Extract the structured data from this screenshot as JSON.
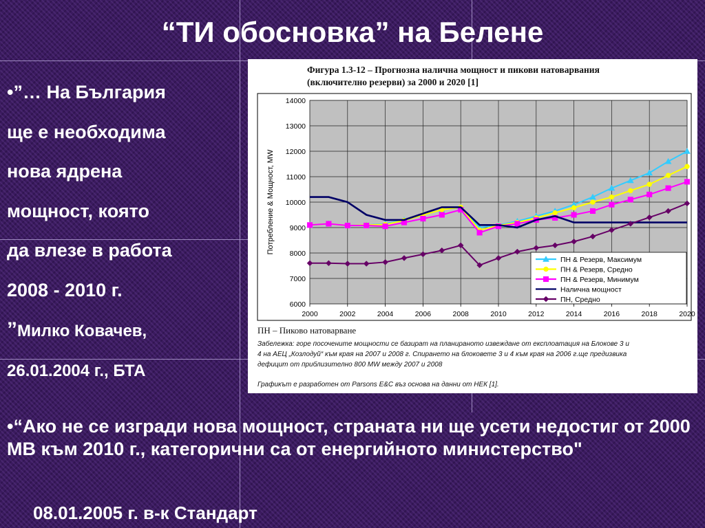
{
  "slide": {
    "title": "“ТИ обосновка” на Белене",
    "quote_lines": [
      "•”… На България",
      "ще е необходима",
      "нова ядрена",
      "мощност, която",
      "да влезе в работа",
      "2008 - 2010 г."
    ],
    "quote_source_mark": "”",
    "quote_source_name": "Милко Ковачев,",
    "quote_source_date": "26.01.2004 г., БТА",
    "bottom_quote": "•“Ако не се изгради нова мощност, страната ни ще усети недостиг от 2000 МВ към 2010 г., категорични са от енергийното министерство\"",
    "bottom_source": "08.01.2005 г. в-к Стандарт"
  },
  "figure": {
    "caption_line1": "Фигура 1.3-12 – Прогнозна налична мощност и пикови натоварвания",
    "caption_line2": "(включително резерви) за 2000 и 2020 [1]",
    "abbrev_note": "ПН – Пиково натоварване",
    "note_lines": [
      "Забележка: горе посочените мощности се базират на планираното извеждане от експлоатация на Блокове 3 и",
      "4 на АЕЦ „Козлодуй“ към края на 2007 и 2008 г.  Спирането на блоковете 3 и 4 към края на 2006 г.ще предизвика",
      "дефицит от приблизително 800 MW между 2007 и 2008"
    ],
    "source_line": "Графикът е разработен от Parsons E&C въз основа на данни от НЕК [1]."
  },
  "chart_data": {
    "type": "line",
    "title": "Фигура 1.3-12 – Прогнозна налична мощност и пикови натоварвания (включително резерви) за 2000 и 2020 [1]",
    "xlabel": "",
    "ylabel": "Потребление & Мощност, MW",
    "ylim": [
      6000,
      14000
    ],
    "xlim": [
      2000,
      2020
    ],
    "grid": true,
    "legend_position": "bottom-right",
    "x_ticks": [
      "2000",
      "2002",
      "2004",
      "2006",
      "2008",
      "2010",
      "2012",
      "2014",
      "2016",
      "2018",
      "2020"
    ],
    "y_ticks": [
      "6000",
      "7000",
      "8000",
      "9000",
      "10000",
      "11000",
      "12000",
      "13000",
      "14000"
    ],
    "x": [
      2000,
      2001,
      2002,
      2003,
      2004,
      2005,
      2006,
      2007,
      2008,
      2009,
      2010,
      2011,
      2012,
      2013,
      2014,
      2015,
      2016,
      2017,
      2018,
      2019,
      2020
    ],
    "series": [
      {
        "name": "ПН & Резерв, Максимум",
        "color": "#33ccff",
        "marker": "triangle",
        "values": [
          9100,
          9150,
          9080,
          9100,
          9150,
          9300,
          9500,
          9700,
          9800,
          9000,
          9100,
          9250,
          9450,
          9650,
          9900,
          10200,
          10550,
          10850,
          11150,
          11600,
          12000
        ]
      },
      {
        "name": "ПН & Резерв, Средно",
        "color": "#ffff00",
        "marker": "circle",
        "values": [
          9100,
          9150,
          9080,
          9100,
          9120,
          9280,
          9500,
          9700,
          9800,
          8900,
          9080,
          9200,
          9380,
          9580,
          9780,
          10000,
          10200,
          10450,
          10700,
          11050,
          11400
        ]
      },
      {
        "name": "ПН & Резерв, Минимум",
        "color": "#ff00ff",
        "marker": "square",
        "values": [
          9100,
          9150,
          9080,
          9080,
          9050,
          9200,
          9350,
          9500,
          9700,
          8800,
          9050,
          9150,
          9300,
          9380,
          9500,
          9650,
          9900,
          10100,
          10300,
          10550,
          10800
        ]
      },
      {
        "name": "Налична мощност",
        "color": "#000066",
        "marker": "none",
        "values": [
          10200,
          10200,
          10000,
          9500,
          9300,
          9300,
          9550,
          9800,
          9800,
          9100,
          9100,
          9000,
          9300,
          9450,
          9200,
          9200,
          9200,
          9200,
          9200,
          9200,
          9200
        ]
      },
      {
        "name": "ПН, Средно",
        "color": "#660066",
        "marker": "diamond",
        "values": [
          7600,
          7600,
          7580,
          7580,
          7640,
          7800,
          7950,
          8100,
          8300,
          7520,
          7800,
          8050,
          8200,
          8300,
          8450,
          8650,
          8900,
          9150,
          9400,
          9650,
          9950
        ]
      }
    ]
  }
}
